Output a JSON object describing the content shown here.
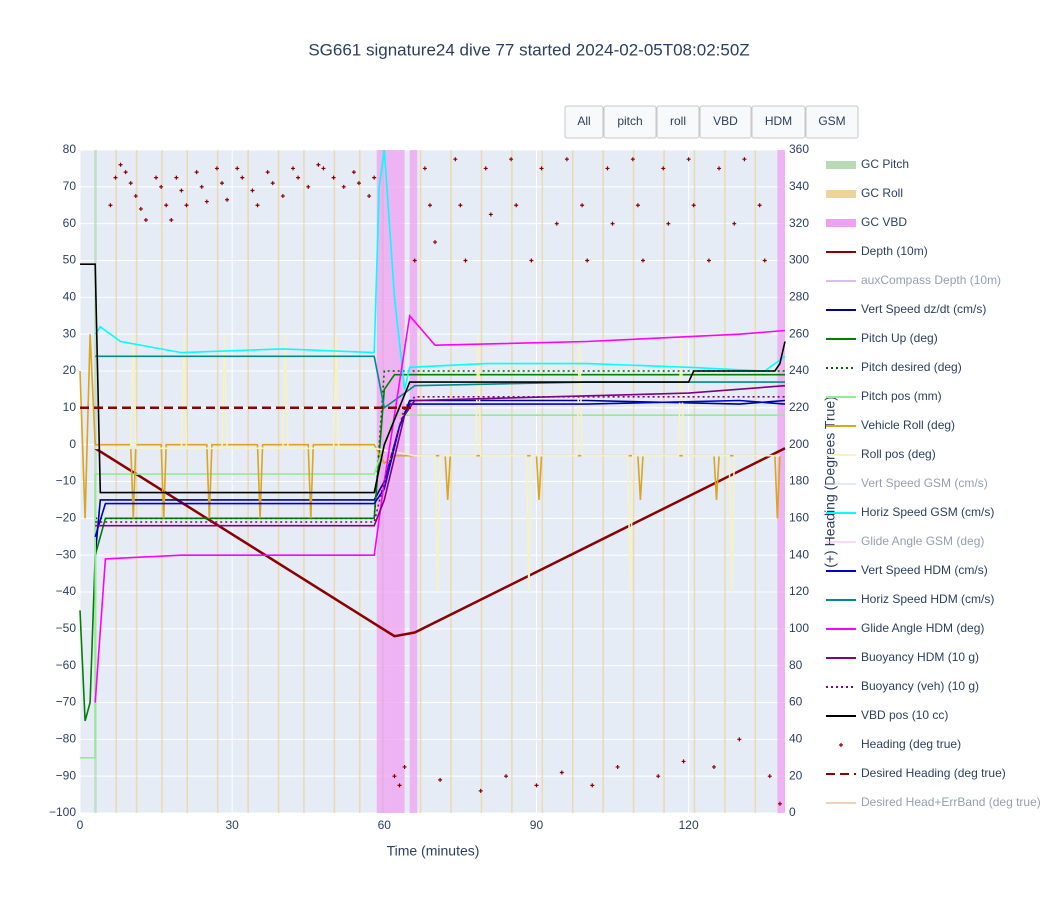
{
  "chart_data": {
    "type": "line",
    "title": "SG661 signature24 dive 77 started 2024-02-05T08:02:50Z",
    "xlabel": "Time (minutes)",
    "y2label": "(+) Heading (Degrees True)",
    "buttons": [
      "All",
      "pitch",
      "roll",
      "VBD",
      "HDM",
      "GSM"
    ],
    "xlim": [
      0,
      139
    ],
    "ylim": [
      -100,
      80
    ],
    "y2lim": [
      0,
      360
    ],
    "grid": true,
    "xticks": [
      0,
      30,
      60,
      90,
      120
    ],
    "yticks": [
      {
        "value": -100,
        "label": "−100"
      },
      {
        "value": -90,
        "label": "−90"
      },
      {
        "value": -80,
        "label": "−80"
      },
      {
        "value": -70,
        "label": "−70"
      },
      {
        "value": -60,
        "label": "−60"
      },
      {
        "value": -50,
        "label": "−50"
      },
      {
        "value": -40,
        "label": "−40"
      },
      {
        "value": -30,
        "label": "−30"
      },
      {
        "value": -20,
        "label": "−20"
      },
      {
        "value": -10,
        "label": "−10"
      },
      0,
      10,
      20,
      30,
      40,
      50,
      60,
      70,
      80
    ],
    "y2ticks": [
      0,
      20,
      40,
      60,
      80,
      100,
      120,
      140,
      160,
      180,
      200,
      220,
      240,
      260,
      280,
      300,
      320,
      340,
      360
    ],
    "series": [
      {
        "name": "GC Pitch",
        "color": "#b6dbb2",
        "mode": "band",
        "x0": [
          2.8,
          59.5
        ],
        "x1": [
          3.3,
          60
        ]
      },
      {
        "name": "GC Roll",
        "color": "#eed39a",
        "mode": "band",
        "x0": [
          7,
          11,
          16,
          21,
          27,
          33,
          39,
          44,
          50,
          55,
          67,
          73,
          79,
          85,
          91,
          97,
          103,
          109,
          115,
          121,
          127,
          133
        ],
        "x1": [
          7.3,
          11.3,
          16.3,
          21.3,
          27.3,
          33.3,
          39.3,
          44.3,
          50.3,
          55.3,
          67.3,
          73.3,
          79.3,
          85.3,
          91.3,
          97.3,
          103.3,
          109.3,
          115.3,
          121.3,
          127.3,
          133.3
        ]
      },
      {
        "name": "GC VBD",
        "color": "#f0a0f0",
        "mode": "band",
        "x0": [
          58.5,
          65,
          137.5
        ],
        "x1": [
          64,
          66.5,
          139
        ]
      },
      {
        "name": "Depth (10m)",
        "color": "#8b0000",
        "mode": "lines+markers",
        "x": [
          3,
          62,
          66,
          139
        ],
        "values": [
          -1,
          -52,
          -51,
          -1
        ]
      },
      {
        "name": "auxCompass Depth (10m)",
        "color": "#b380e0",
        "mode": "lines+markers",
        "visible": false
      },
      {
        "name": "Vert Speed dz/dt (cm/s)",
        "color": "#00008b",
        "mode": "lines",
        "x": [
          3,
          4,
          58,
          60,
          63,
          65,
          100,
          130,
          139
        ],
        "values": [
          -30,
          -15,
          -15,
          -10,
          5,
          12,
          12,
          11,
          12
        ]
      },
      {
        "name": "Pitch Up (deg)",
        "color": "#008000",
        "mode": "lines",
        "x": [
          0,
          1,
          2,
          3,
          5,
          58,
          60,
          62,
          139
        ],
        "values": [
          -45,
          -75,
          -70,
          -30,
          -20,
          -20,
          15,
          19,
          19
        ]
      },
      {
        "name": "Pitch desired (deg)",
        "color": "#006400",
        "mode": "lines",
        "dash": "dot",
        "x": [
          3,
          58,
          60,
          139
        ],
        "values": [
          -20,
          -20,
          20,
          20
        ]
      },
      {
        "name": "Pitch pos (mm)",
        "color": "#90ee90",
        "mode": "lines",
        "x": [
          0,
          3,
          3,
          58,
          62,
          139
        ],
        "values": [
          -85,
          -85,
          -8,
          -8,
          8,
          8
        ]
      },
      {
        "name": "Vehicle Roll (deg)",
        "color": "#daa520",
        "mode": "lines",
        "x": [
          0,
          1,
          2,
          3,
          10,
          10.5,
          11,
          16,
          16.5,
          17,
          25,
          25.5,
          26,
          35,
          35.5,
          36,
          45,
          45.5,
          46,
          58,
          60,
          62,
          66,
          72,
          72.5,
          73,
          90,
          90.5,
          91,
          110,
          110.5,
          111,
          125,
          125.5,
          126,
          137,
          137.5,
          138
        ],
        "values": [
          20,
          -20,
          30,
          0,
          0,
          -20,
          0,
          0,
          -20,
          0,
          0,
          -20,
          0,
          0,
          -20,
          0,
          0,
          -20,
          0,
          0,
          -5,
          -3,
          -3,
          -3,
          -15,
          -3,
          -3,
          -15,
          -3,
          -3,
          -15,
          -3,
          -3,
          -15,
          -3,
          -3,
          -20,
          -3
        ]
      },
      {
        "name": "Roll pos (deg)",
        "color": "#f7f2c4",
        "mode": "lines",
        "x": [
          3,
          10,
          10.5,
          11,
          20,
          20.5,
          21,
          28,
          28.5,
          29,
          40,
          40.5,
          41,
          50,
          50.5,
          51,
          58,
          66,
          70,
          70.5,
          71,
          78,
          78.5,
          79,
          88,
          88.5,
          89,
          98,
          98.5,
          99,
          108,
          108.5,
          109,
          118,
          118.5,
          119,
          128,
          128.5,
          129,
          138
        ],
        "values": [
          -1,
          -1,
          30,
          -1,
          -1,
          30,
          -1,
          -1,
          30,
          -1,
          -1,
          30,
          -1,
          -1,
          30,
          -1,
          -1,
          -3,
          -3,
          -40,
          -3,
          -3,
          30,
          -3,
          -3,
          -40,
          -3,
          -3,
          30,
          -3,
          -3,
          -40,
          -3,
          -3,
          30,
          -3,
          -3,
          -40,
          -3,
          -3
        ]
      },
      {
        "name": "Vert Speed GSM (cm/s)",
        "color": "#c6dbef",
        "mode": "lines",
        "visible": false
      },
      {
        "name": "Horiz Speed GSM (cm/s)",
        "color": "#00ffff",
        "mode": "lines",
        "x": [
          3,
          4,
          8,
          20,
          40,
          58,
          59,
          60,
          62,
          64,
          65,
          80,
          100,
          120,
          135,
          139
        ],
        "values": [
          30,
          32,
          28,
          25,
          26,
          25,
          70,
          80,
          40,
          15,
          21,
          22,
          22,
          21,
          20,
          24
        ]
      },
      {
        "name": "Glide Angle GSM (deg)",
        "color": "#f0b6f0",
        "mode": "lines",
        "visible": false
      },
      {
        "name": "Vert Speed HDM (cm/s)",
        "color": "#0000cd",
        "mode": "lines",
        "x": [
          3,
          5,
          58,
          60,
          63,
          65,
          100,
          130,
          139
        ],
        "values": [
          -25,
          -16,
          -16,
          -12,
          5,
          11,
          11,
          12,
          11
        ]
      },
      {
        "name": "Horiz Speed HDM (cm/s)",
        "color": "#008b8b",
        "mode": "lines",
        "x": [
          3,
          5,
          58,
          60,
          64,
          66,
          100,
          139
        ],
        "values": [
          24,
          24,
          24,
          10,
          14,
          16,
          17,
          17
        ]
      },
      {
        "name": "Glide Angle HDM (deg)",
        "color": "#ff00ff",
        "mode": "lines",
        "x": [
          3,
          5,
          20,
          58,
          60,
          65,
          70,
          100,
          130,
          139
        ],
        "values": [
          -70,
          -31,
          -30,
          -30,
          -10,
          35,
          27,
          28,
          30,
          31
        ]
      },
      {
        "name": "Buoyancy HDM (10 g)",
        "color": "#800080",
        "mode": "lines",
        "x": [
          3,
          58,
          60,
          64,
          66,
          120,
          139
        ],
        "values": [
          -22,
          -22,
          -15,
          8,
          12,
          14,
          16
        ]
      },
      {
        "name": "Buoyancy (veh) (10 g)",
        "color": "#800080",
        "mode": "lines",
        "dash": "dot",
        "x": [
          3,
          58,
          60,
          64,
          66,
          139
        ],
        "values": [
          -21,
          -21,
          -10,
          10,
          13,
          13
        ]
      },
      {
        "name": "VBD pos (10 cc)",
        "color": "#000000",
        "mode": "lines",
        "x": [
          0,
          3,
          4,
          58,
          60,
          65,
          120,
          121,
          137,
          138,
          139
        ],
        "values": [
          49,
          49,
          -13,
          -13,
          0,
          17,
          17,
          20,
          20,
          22,
          28
        ]
      },
      {
        "name": "Heading (deg true)",
        "color": "#8b0000",
        "mode": "markers",
        "axis": "y2",
        "x": [
          6,
          7,
          8,
          9,
          10,
          11,
          12,
          13,
          15,
          16,
          17,
          18,
          19,
          20,
          21,
          23,
          24,
          25,
          27,
          28,
          29,
          31,
          32,
          34,
          35,
          37,
          38,
          40,
          42,
          43,
          45,
          47,
          48,
          50,
          52,
          54,
          55,
          57,
          58,
          62,
          63,
          64,
          66,
          68,
          69,
          70,
          71,
          74,
          75,
          76,
          79,
          80,
          81,
          84,
          85,
          86,
          89,
          90,
          91,
          94,
          95,
          96,
          99,
          100,
          101,
          104,
          105,
          106,
          109,
          110,
          111,
          114,
          115,
          116,
          119,
          120,
          121,
          124,
          125,
          126,
          129,
          130,
          131,
          134,
          135,
          136,
          138
        ],
        "values": [
          330,
          345,
          352,
          348,
          342,
          335,
          328,
          322,
          345,
          340,
          330,
          322,
          345,
          338,
          330,
          348,
          340,
          332,
          350,
          342,
          333,
          350,
          345,
          338,
          330,
          348,
          342,
          335,
          350,
          345,
          340,
          352,
          350,
          345,
          340,
          348,
          342,
          335,
          345,
          20,
          15,
          25,
          300,
          350,
          330,
          310,
          18,
          355,
          330,
          300,
          12,
          350,
          325,
          20,
          355,
          330,
          300,
          15,
          350,
          320,
          22,
          355,
          330,
          300,
          15,
          350,
          320,
          25,
          355,
          330,
          300,
          20,
          350,
          320,
          28,
          355,
          330,
          300,
          25,
          350,
          320,
          40,
          355,
          330,
          300,
          20,
          5
        ]
      },
      {
        "name": "Desired Heading (deg true)",
        "color": "#8b0000",
        "mode": "lines",
        "dash": "dash",
        "axis": "y2",
        "x": [
          0,
          66
        ],
        "values": [
          220,
          220
        ]
      },
      {
        "name": "Desired Head+ErrBand (deg true)",
        "color": "#e9a06c",
        "mode": "lines",
        "visible": false
      }
    ]
  }
}
